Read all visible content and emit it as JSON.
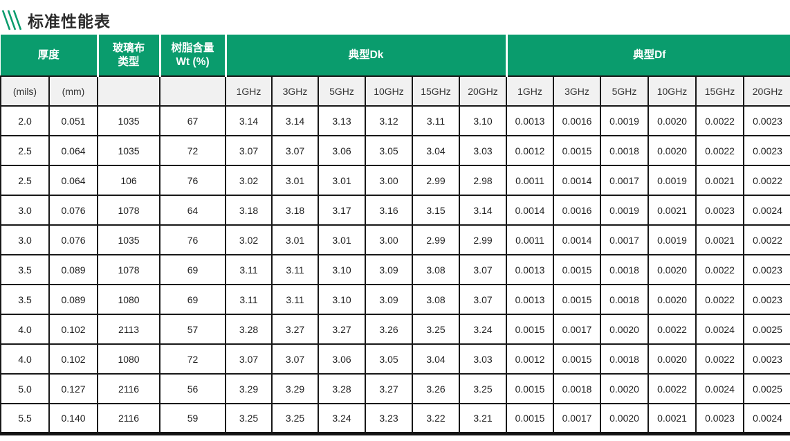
{
  "header": {
    "title": "标准性能表"
  },
  "accent_color": "#0a9c6d",
  "table": {
    "group_headers": [
      {
        "label": "厚度",
        "colspan": 2
      },
      {
        "label": "玻璃布\n类型",
        "colspan": 1
      },
      {
        "label": "树脂含量\nWt (%)",
        "colspan": 1
      },
      {
        "label": "典型Dk",
        "colspan": 6
      },
      {
        "label": "典型Df",
        "colspan": 6
      }
    ],
    "sub_headers": [
      "(mils)",
      "(mm)",
      "",
      "",
      "1GHz",
      "3GHz",
      "5GHz",
      "10GHz",
      "15GHz",
      "20GHz",
      "1GHz",
      "3GHz",
      "5GHz",
      "10GHz",
      "15GHz",
      "20GHz"
    ],
    "rows": [
      [
        "2.0",
        "0.051",
        "1035",
        "67",
        "3.14",
        "3.14",
        "3.13",
        "3.12",
        "3.11",
        "3.10",
        "0.0013",
        "0.0016",
        "0.0019",
        "0.0020",
        "0.0022",
        "0.0023"
      ],
      [
        "2.5",
        "0.064",
        "1035",
        "72",
        "3.07",
        "3.07",
        "3.06",
        "3.05",
        "3.04",
        "3.03",
        "0.0012",
        "0.0015",
        "0.0018",
        "0.0020",
        "0.0022",
        "0.0023"
      ],
      [
        "2.5",
        "0.064",
        "106",
        "76",
        "3.02",
        "3.01",
        "3.01",
        "3.00",
        "2.99",
        "2.98",
        "0.0011",
        "0.0014",
        "0.0017",
        "0.0019",
        "0.0021",
        "0.0022"
      ],
      [
        "3.0",
        "0.076",
        "1078",
        "64",
        "3.18",
        "3.18",
        "3.17",
        "3.16",
        "3.15",
        "3.14",
        "0.0014",
        "0.0016",
        "0.0019",
        "0.0021",
        "0.0023",
        "0.0024"
      ],
      [
        "3.0",
        "0.076",
        "1035",
        "76",
        "3.02",
        "3.01",
        "3.01",
        "3.00",
        "2.99",
        "2.99",
        "0.0011",
        "0.0014",
        "0.0017",
        "0.0019",
        "0.0021",
        "0.0022"
      ],
      [
        "3.5",
        "0.089",
        "1078",
        "69",
        "3.11",
        "3.11",
        "3.10",
        "3.09",
        "3.08",
        "3.07",
        "0.0013",
        "0.0015",
        "0.0018",
        "0.0020",
        "0.0022",
        "0.0023"
      ],
      [
        "3.5",
        "0.089",
        "1080",
        "69",
        "3.11",
        "3.11",
        "3.10",
        "3.09",
        "3.08",
        "3.07",
        "0.0013",
        "0.0015",
        "0.0018",
        "0.0020",
        "0.0022",
        "0.0023"
      ],
      [
        "4.0",
        "0.102",
        "2113",
        "57",
        "3.28",
        "3.27",
        "3.27",
        "3.26",
        "3.25",
        "3.24",
        "0.0015",
        "0.0017",
        "0.0020",
        "0.0022",
        "0.0024",
        "0.0025"
      ],
      [
        "4.0",
        "0.102",
        "1080",
        "72",
        "3.07",
        "3.07",
        "3.06",
        "3.05",
        "3.04",
        "3.03",
        "0.0012",
        "0.0015",
        "0.0018",
        "0.0020",
        "0.0022",
        "0.0023"
      ],
      [
        "5.0",
        "0.127",
        "2116",
        "56",
        "3.29",
        "3.29",
        "3.28",
        "3.27",
        "3.26",
        "3.25",
        "0.0015",
        "0.0018",
        "0.0020",
        "0.0022",
        "0.0024",
        "0.0025"
      ],
      [
        "5.5",
        "0.140",
        "2116",
        "59",
        "3.25",
        "3.25",
        "3.24",
        "3.23",
        "3.22",
        "3.21",
        "0.0015",
        "0.0017",
        "0.0020",
        "0.0021",
        "0.0023",
        "0.0024"
      ]
    ]
  }
}
